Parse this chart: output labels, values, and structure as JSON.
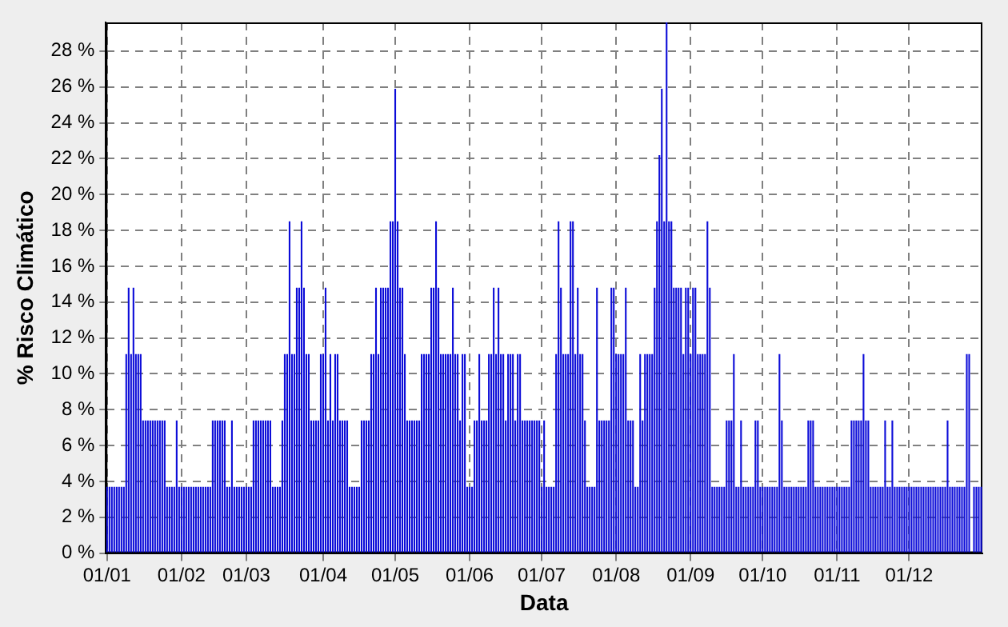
{
  "chart_data": {
    "type": "bar",
    "xlabel": "Data",
    "ylabel": "% Risco Climático",
    "categories": [
      "01/01",
      null,
      null,
      null,
      null,
      null,
      null,
      null,
      null,
      null,
      null,
      null,
      null,
      null,
      null,
      null,
      null,
      null,
      null,
      null,
      null,
      null,
      null,
      null,
      null,
      null,
      null,
      null,
      null,
      null,
      null,
      "01/02",
      null,
      null,
      null,
      null,
      null,
      null,
      null,
      null,
      null,
      null,
      null,
      null,
      null,
      null,
      null,
      null,
      null,
      null,
      null,
      null,
      null,
      null,
      null,
      null,
      null,
      null,
      "01/03",
      null,
      null,
      null,
      null,
      null,
      null,
      null,
      null,
      null,
      null,
      null,
      null,
      null,
      null,
      null,
      null,
      null,
      null,
      null,
      null,
      null,
      null,
      null,
      null,
      null,
      null,
      null,
      null,
      null,
      null,
      null,
      "01/04",
      null,
      null,
      null,
      null,
      null,
      null,
      null,
      null,
      null,
      null,
      null,
      null,
      null,
      null,
      null,
      null,
      null,
      null,
      null,
      null,
      null,
      null,
      null,
      null,
      null,
      null,
      null,
      null,
      null,
      "01/05",
      null,
      null,
      null,
      null,
      null,
      null,
      null,
      null,
      null,
      null,
      null,
      null,
      null,
      null,
      null,
      null,
      null,
      null,
      null,
      null,
      null,
      null,
      null,
      null,
      null,
      null,
      null,
      null,
      null,
      null,
      "01/06",
      null,
      null,
      null,
      null,
      null,
      null,
      null,
      null,
      null,
      null,
      null,
      null,
      null,
      null,
      null,
      null,
      null,
      null,
      null,
      null,
      null,
      null,
      null,
      null,
      null,
      null,
      null,
      null,
      null,
      "01/07",
      null,
      null,
      null,
      null,
      null,
      null,
      null,
      null,
      null,
      null,
      null,
      null,
      null,
      null,
      null,
      null,
      null,
      null,
      null,
      null,
      null,
      null,
      null,
      null,
      null,
      null,
      null,
      null,
      null,
      null,
      "01/08",
      null,
      null,
      null,
      null,
      null,
      null,
      null,
      null,
      null,
      null,
      null,
      null,
      null,
      null,
      null,
      null,
      null,
      null,
      null,
      null,
      null,
      null,
      null,
      null,
      null,
      null,
      null,
      null,
      null,
      null,
      "01/09",
      null,
      null,
      null,
      null,
      null,
      null,
      null,
      null,
      null,
      null,
      null,
      null,
      null,
      null,
      null,
      null,
      null,
      null,
      null,
      null,
      null,
      null,
      null,
      null,
      null,
      null,
      null,
      null,
      null,
      "01/10",
      null,
      null,
      null,
      null,
      null,
      null,
      null,
      null,
      null,
      null,
      null,
      null,
      null,
      null,
      null,
      null,
      null,
      null,
      null,
      null,
      null,
      null,
      null,
      null,
      null,
      null,
      null,
      null,
      null,
      null,
      "01/11",
      null,
      null,
      null,
      null,
      null,
      null,
      null,
      null,
      null,
      null,
      null,
      null,
      null,
      null,
      null,
      null,
      null,
      null,
      null,
      null,
      null,
      null,
      null,
      null,
      null,
      null,
      null,
      null,
      null,
      "01/12",
      null,
      null,
      null,
      null,
      null,
      null,
      null,
      null,
      null,
      null,
      null,
      null,
      null,
      null,
      null,
      null,
      null,
      null,
      null,
      null,
      null,
      null,
      null,
      null,
      null,
      null,
      null,
      null,
      null,
      null
    ],
    "values": [
      3.7,
      3.7,
      3.7,
      3.7,
      3.7,
      3.7,
      3.7,
      3.7,
      11.1,
      14.8,
      11.1,
      14.8,
      11.1,
      11.1,
      11.1,
      7.4,
      7.4,
      7.4,
      7.4,
      7.4,
      7.4,
      7.4,
      7.4,
      7.4,
      7.4,
      3.7,
      3.7,
      3.7,
      3.7,
      7.4,
      3.7,
      3.7,
      3.7,
      3.7,
      3.7,
      3.7,
      3.7,
      3.7,
      3.7,
      3.7,
      3.7,
      3.7,
      3.7,
      3.7,
      7.4,
      7.4,
      7.4,
      7.4,
      7.4,
      7.4,
      3.7,
      3.7,
      7.4,
      3.7,
      3.7,
      3.7,
      3.7,
      3.7,
      3.7,
      3.7,
      3.7,
      7.4,
      7.4,
      7.4,
      7.4,
      7.4,
      7.4,
      7.4,
      7.4,
      3.7,
      3.7,
      3.7,
      3.7,
      7.4,
      11.1,
      11.1,
      18.5,
      11.1,
      11.1,
      14.8,
      14.8,
      18.5,
      14.8,
      11.1,
      11.1,
      7.4,
      7.4,
      7.4,
      7.4,
      11.1,
      11.1,
      14.8,
      7.4,
      11.1,
      7.4,
      11.1,
      11.1,
      7.4,
      7.4,
      7.4,
      7.4,
      3.7,
      3.7,
      3.7,
      3.7,
      3.7,
      7.4,
      7.4,
      7.4,
      7.4,
      11.1,
      11.1,
      14.8,
      11.1,
      14.8,
      14.8,
      14.8,
      14.8,
      18.5,
      18.5,
      25.9,
      18.5,
      14.8,
      14.8,
      11.1,
      7.4,
      7.4,
      7.4,
      7.4,
      7.4,
      7.4,
      11.1,
      11.1,
      11.1,
      11.1,
      14.8,
      14.8,
      18.5,
      14.8,
      11.1,
      11.1,
      11.1,
      11.1,
      11.1,
      14.8,
      11.1,
      11.1,
      7.4,
      11.1,
      11.1,
      3.7,
      3.7,
      3.7,
      7.4,
      7.4,
      11.1,
      7.4,
      7.4,
      7.4,
      11.1,
      11.1,
      14.8,
      11.1,
      14.8,
      11.1,
      11.1,
      7.4,
      11.1,
      11.1,
      11.1,
      7.4,
      11.1,
      11.1,
      7.4,
      7.4,
      7.4,
      7.4,
      7.4,
      7.4,
      7.4,
      7.4,
      3.7,
      7.4,
      3.7,
      3.7,
      3.7,
      3.7,
      11.1,
      18.5,
      14.8,
      11.1,
      11.1,
      11.1,
      18.5,
      18.5,
      11.1,
      14.8,
      11.1,
      11.1,
      7.4,
      3.7,
      3.7,
      3.7,
      3.7,
      14.8,
      7.4,
      7.4,
      7.4,
      7.4,
      7.4,
      14.8,
      14.8,
      11.1,
      11.1,
      11.1,
      11.1,
      14.8,
      7.4,
      7.4,
      7.4,
      3.7,
      3.7,
      11.1,
      7.4,
      11.1,
      11.1,
      11.1,
      11.1,
      14.8,
      18.5,
      22.2,
      25.9,
      18.5,
      29.6,
      18.5,
      18.5,
      14.8,
      14.8,
      14.8,
      14.8,
      11.1,
      14.8,
      14.8,
      11.1,
      14.8,
      14.8,
      11.1,
      11.1,
      11.1,
      11.1,
      18.5,
      14.8,
      3.7,
      3.7,
      3.7,
      3.7,
      3.7,
      3.7,
      7.4,
      7.4,
      7.4,
      11.1,
      3.7,
      3.7,
      7.4,
      3.7,
      3.7,
      3.7,
      3.7,
      3.7,
      7.4,
      7.4,
      3.7,
      3.7,
      3.7,
      3.7,
      3.7,
      3.7,
      3.7,
      3.7,
      11.1,
      7.4,
      3.7,
      3.7,
      3.7,
      3.7,
      3.7,
      3.7,
      3.7,
      3.7,
      3.7,
      3.7,
      7.4,
      7.4,
      7.4,
      3.7,
      3.7,
      3.7,
      3.7,
      3.7,
      3.7,
      3.7,
      3.7,
      3.7,
      3.7,
      3.7,
      3.7,
      3.7,
      3.7,
      3.7,
      7.4,
      7.4,
      7.4,
      7.4,
      7.4,
      11.1,
      7.4,
      7.4,
      3.7,
      3.7,
      3.7,
      3.7,
      3.7,
      3.7,
      7.4,
      3.7,
      3.7,
      7.4,
      3.7,
      3.7,
      3.7,
      3.7,
      3.7,
      3.7,
      3.7,
      3.7,
      3.7,
      3.7,
      3.7,
      3.7,
      3.7,
      3.7,
      3.7,
      3.7,
      3.7,
      3.7,
      3.7,
      3.7,
      3.7,
      3.7,
      7.4,
      3.7,
      3.7,
      3.7,
      3.7,
      3.7,
      3.7,
      3.7,
      11.1,
      11.1,
      null,
      3.7,
      3.7,
      3.7,
      3.7
    ],
    "color": "#0c0cd8",
    "ylim": [
      0,
      29.6
    ],
    "yticks": [
      {
        "value": 0,
        "label": "0 %"
      },
      {
        "value": 2,
        "label": "2 %"
      },
      {
        "value": 4,
        "label": "4 %"
      },
      {
        "value": 6,
        "label": "6 %"
      },
      {
        "value": 8,
        "label": "8 %"
      },
      {
        "value": 10,
        "label": "10 %"
      },
      {
        "value": 12,
        "label": "12 %"
      },
      {
        "value": 14,
        "label": "14 %"
      },
      {
        "value": 16,
        "label": "16 %"
      },
      {
        "value": 18,
        "label": "18 %"
      },
      {
        "value": 20,
        "label": "20 %"
      },
      {
        "value": 22,
        "label": "22 %"
      },
      {
        "value": 24,
        "label": "24 %"
      },
      {
        "value": 26,
        "label": "26 %"
      },
      {
        "value": 28,
        "label": "28 %"
      }
    ],
    "grid": true,
    "legend": false
  }
}
